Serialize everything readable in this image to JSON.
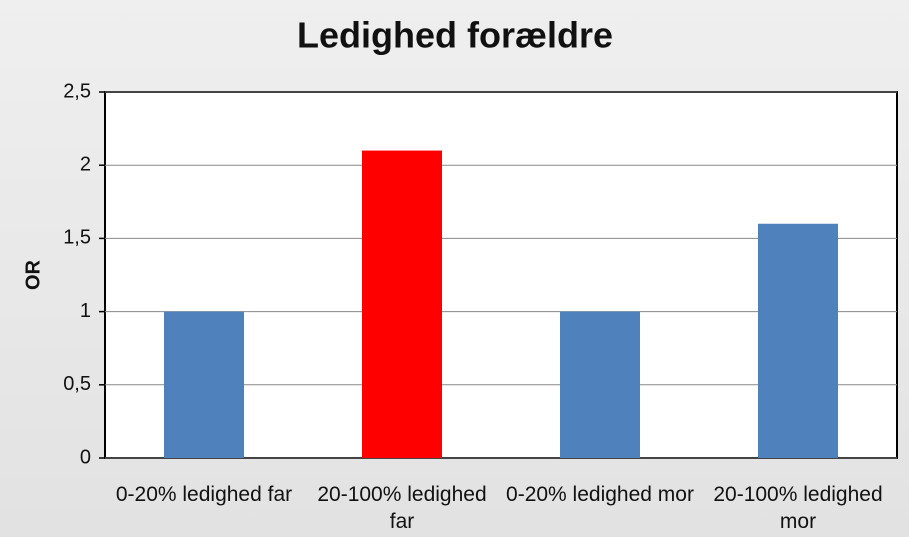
{
  "chart_data": {
    "type": "bar",
    "title": "Ledighed forældre",
    "y_label": "OR",
    "categories": [
      "0-20% ledighed far",
      "20-100% ledighed far",
      "0-20% ledighed mor",
      "20-100% ledighed mor"
    ],
    "values": [
      1,
      2.1,
      1,
      1.6
    ],
    "colors": [
      "#4f81bd",
      "#ff0000",
      "#4f81bd",
      "#4f81bd"
    ],
    "ylim": [
      0,
      2.5
    ],
    "yticks": [
      0,
      {
        "value": 0.5,
        "label": "0,5"
      },
      1,
      {
        "value": 1.5,
        "label": "1,5"
      },
      2,
      {
        "value": 2.5,
        "label": "2,5"
      }
    ],
    "grid": true
  }
}
